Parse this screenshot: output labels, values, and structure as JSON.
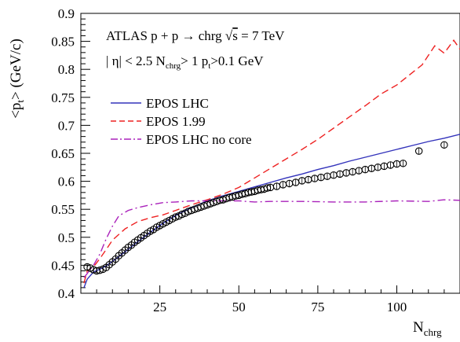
{
  "chart_data": {
    "type": "line",
    "title_lines": [
      {
        "prefix": "ATLAS p + p ",
        "arrow": "→",
        "middle": " chrg ",
        "sqrt": "√",
        "s": "s",
        "suffix": " = 7 TeV"
      },
      {
        "text": "| η| < 2.5  N",
        "sub1": "chrg",
        "text2": "> 1  p",
        "sub2": "t",
        "text3": ">0.1 GeV"
      }
    ],
    "ylabel": {
      "pre": "<p",
      "sub": "t",
      "post": "> (GeV/c)"
    },
    "xlabel": {
      "main": "N",
      "sub": "chrg"
    },
    "xlim": [
      0,
      120
    ],
    "ylim": [
      0.4,
      0.9
    ],
    "xticks": [
      {
        "value": 25,
        "label": "25"
      },
      {
        "value": 50,
        "label": "50"
      },
      {
        "value": 75,
        "label": "75"
      },
      {
        "value": 100,
        "label": "100"
      }
    ],
    "yticks": [
      {
        "value": 0.4,
        "label": "0.4"
      },
      {
        "value": 0.45,
        "label": "0.45"
      },
      {
        "value": 0.5,
        "label": "0.5"
      },
      {
        "value": 0.55,
        "label": "0.55"
      },
      {
        "value": 0.6,
        "label": "0.6"
      },
      {
        "value": 0.65,
        "label": "0.65"
      },
      {
        "value": 0.7,
        "label": "0.7"
      },
      {
        "value": 0.75,
        "label": "0.75"
      },
      {
        "value": 0.8,
        "label": "0.8"
      },
      {
        "value": 0.85,
        "label": "0.85"
      },
      {
        "value": 0.9,
        "label": "0.9"
      }
    ],
    "legend_position": "upper-left",
    "series": [
      {
        "name": "EPOS LHC",
        "style": "solid",
        "color": "#3333bb",
        "x": [
          1,
          2,
          4,
          6,
          8,
          10,
          14,
          18,
          22,
          26,
          30,
          35,
          40,
          45,
          50,
          55,
          60,
          65,
          70,
          75,
          80,
          85,
          90,
          95,
          100,
          105,
          110,
          115,
          120
        ],
        "y": [
          0.41,
          0.425,
          0.438,
          0.443,
          0.449,
          0.457,
          0.474,
          0.492,
          0.509,
          0.525,
          0.539,
          0.553,
          0.565,
          0.574,
          0.582,
          0.59,
          0.598,
          0.606,
          0.613,
          0.621,
          0.628,
          0.636,
          0.643,
          0.65,
          0.657,
          0.664,
          0.671,
          0.677,
          0.684
        ]
      },
      {
        "name": "EPOS 1.99",
        "style": "dashed",
        "color": "#ee2222",
        "x": [
          1,
          2,
          4,
          6,
          8,
          10,
          14,
          18,
          22,
          26,
          30,
          35,
          40,
          45,
          50,
          55,
          60,
          65,
          70,
          75,
          80,
          85,
          90,
          95,
          100,
          104,
          108,
          112,
          115,
          118,
          120
        ],
        "y": [
          0.418,
          0.44,
          0.447,
          0.462,
          0.478,
          0.495,
          0.515,
          0.528,
          0.535,
          0.54,
          0.548,
          0.558,
          0.567,
          0.577,
          0.589,
          0.606,
          0.623,
          0.64,
          0.657,
          0.675,
          0.695,
          0.715,
          0.735,
          0.756,
          0.772,
          0.79,
          0.808,
          0.842,
          0.829,
          0.852,
          0.836
        ]
      },
      {
        "name": "EPOS LHC no core",
        "style": "dashdot",
        "color": "#aa22bb",
        "x": [
          1,
          2,
          4,
          6,
          8,
          10,
          12,
          15,
          18,
          22,
          26,
          30,
          35,
          40,
          45,
          50,
          55,
          60,
          70,
          80,
          90,
          100,
          110,
          115,
          120
        ],
        "y": [
          0.428,
          0.435,
          0.45,
          0.47,
          0.497,
          0.52,
          0.538,
          0.548,
          0.553,
          0.558,
          0.562,
          0.563,
          0.565,
          0.565,
          0.565,
          0.565,
          0.563,
          0.564,
          0.564,
          0.563,
          0.563,
          0.565,
          0.564,
          0.567,
          0.566
        ]
      },
      {
        "name": "",
        "style": "markers",
        "color": "#000000",
        "x": [
          2,
          3,
          4,
          5,
          6,
          7,
          8,
          9,
          10,
          11,
          12,
          13,
          14,
          15,
          16,
          17,
          18,
          19,
          20,
          21,
          22,
          23,
          24,
          25,
          26,
          27,
          28,
          29,
          30,
          31,
          32,
          33,
          34,
          35,
          36,
          37,
          38,
          39,
          40,
          41,
          42,
          43,
          44,
          45,
          46,
          47,
          48,
          49,
          50,
          51,
          52,
          53,
          54,
          55,
          56,
          57,
          58,
          59,
          60,
          62,
          64,
          66,
          68,
          70,
          72,
          74,
          76,
          78,
          80,
          82,
          84,
          86,
          88,
          90,
          92,
          94,
          96,
          98,
          100,
          102,
          107,
          115
        ],
        "y": [
          0.447,
          0.445,
          0.442,
          0.44,
          0.441,
          0.443,
          0.446,
          0.451,
          0.456,
          0.461,
          0.467,
          0.472,
          0.477,
          0.482,
          0.486,
          0.491,
          0.495,
          0.499,
          0.503,
          0.507,
          0.511,
          0.514,
          0.518,
          0.521,
          0.524,
          0.527,
          0.53,
          0.533,
          0.536,
          0.538,
          0.541,
          0.543,
          0.546,
          0.548,
          0.55,
          0.552,
          0.554,
          0.556,
          0.558,
          0.56,
          0.562,
          0.564,
          0.566,
          0.567,
          0.569,
          0.571,
          0.572,
          0.574,
          0.575,
          0.577,
          0.578,
          0.58,
          0.581,
          0.582,
          0.584,
          0.585,
          0.586,
          0.588,
          0.589,
          0.591,
          0.594,
          0.596,
          0.598,
          0.601,
          0.603,
          0.605,
          0.607,
          0.609,
          0.611,
          0.613,
          0.615,
          0.617,
          0.619,
          0.621,
          0.623,
          0.625,
          0.627,
          0.629,
          0.631,
          0.632,
          0.654,
          0.665
        ]
      }
    ]
  }
}
